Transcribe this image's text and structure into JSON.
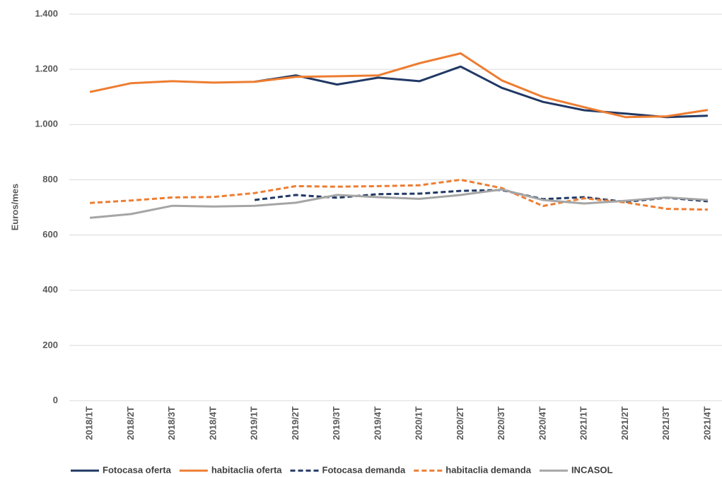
{
  "chart_data": {
    "type": "line",
    "y_label": "Euros/mes",
    "categories": [
      "2018/1T",
      "2018/2T",
      "2018/3T",
      "2018/4T",
      "2019/1T",
      "2019/2T",
      "2019/3T",
      "2019/4T",
      "2020/1T",
      "2020/2T",
      "2020/3T",
      "2020/4T",
      "2021/1T",
      "2021/2T",
      "2021/3T",
      "2021/4T"
    ],
    "series": [
      {
        "name": "Fotocasa oferta",
        "color": "#203864",
        "dash": false,
        "values": [
          null,
          null,
          null,
          null,
          1155,
          1178,
          1145,
          1170,
          1157,
          1210,
          1133,
          1082,
          1052,
          1040,
          1027,
          1032
        ]
      },
      {
        "name": "habitaclia oferta",
        "color": "#ed7d31",
        "dash": false,
        "values": [
          1118,
          1150,
          1157,
          1152,
          1155,
          1173,
          1175,
          1178,
          1222,
          1258,
          1160,
          1100,
          1063,
          1027,
          1030,
          1053
        ]
      },
      {
        "name": "Fotocasa demanda",
        "color": "#203864",
        "dash": true,
        "values": [
          null,
          null,
          null,
          null,
          727,
          745,
          735,
          748,
          750,
          760,
          763,
          730,
          737,
          720,
          735,
          722
        ]
      },
      {
        "name": "habitaclia demanda",
        "color": "#ed7d31",
        "dash": true,
        "values": [
          716,
          725,
          736,
          738,
          752,
          777,
          775,
          777,
          780,
          800,
          770,
          705,
          733,
          718,
          695,
          692
        ]
      },
      {
        "name": "INCASOL",
        "color": "#a5a5a5",
        "dash": false,
        "values": [
          662,
          676,
          706,
          703,
          706,
          717,
          745,
          737,
          731,
          745,
          765,
          727,
          714,
          724,
          736,
          727
        ]
      }
    ],
    "ylim": [
      0,
      1400
    ],
    "yticks": [
      0,
      200,
      400,
      600,
      800,
      {
        "value": 1000,
        "label": "1.000"
      },
      {
        "value": 1200,
        "label": "1.200"
      },
      {
        "value": 1400,
        "label": "1.400"
      }
    ],
    "grid": true
  }
}
